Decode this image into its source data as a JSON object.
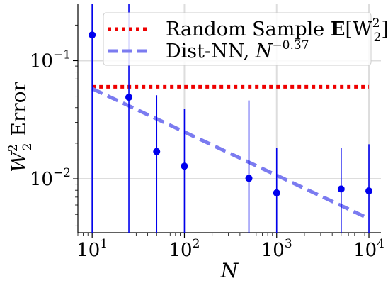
{
  "chart_data": {
    "type": "scatter",
    "xlabel": "N",
    "ylabel": "W_2^2 Error",
    "ylabel_base": "W",
    "ylabel_sub": "2",
    "ylabel_sup": "2",
    "ylabel_rest": " Error",
    "xscale": "log",
    "yscale": "log",
    "xlim": [
      7.0,
      13500
    ],
    "ylim": [
      0.0035,
      0.3
    ],
    "grid": true,
    "legend_position": "top-right",
    "x_ticks": [
      {
        "value": 10,
        "base": "10",
        "exp": "1"
      },
      {
        "value": 100,
        "base": "10",
        "exp": "2"
      },
      {
        "value": 1000,
        "base": "10",
        "exp": "3"
      },
      {
        "value": 10000,
        "base": "10",
        "exp": "4"
      }
    ],
    "y_ticks": [
      {
        "value": 0.1,
        "base": "10",
        "exp": "−1"
      },
      {
        "value": 0.01,
        "base": "10",
        "exp": "−2"
      }
    ],
    "series": [
      {
        "kind": "errorbar",
        "color": "#0000ee",
        "points": [
          {
            "x": 10,
            "y": 0.165,
            "y_low": 0.0035,
            "y_high": 0.3
          },
          {
            "x": 25,
            "y": 0.049,
            "y_low": 0.0035,
            "y_high": 0.3
          },
          {
            "x": 50,
            "y": 0.017,
            "y_low": 0.0035,
            "y_high": 0.051
          },
          {
            "x": 100,
            "y": 0.0128,
            "y_low": 0.0035,
            "y_high": 0.039
          },
          {
            "x": 500,
            "y": 0.0101,
            "y_low": 0.0035,
            "y_high": 0.046
          },
          {
            "x": 1000,
            "y": 0.0076,
            "y_low": 0.0035,
            "y_high": 0.0183
          },
          {
            "x": 5000,
            "y": 0.0082,
            "y_low": 0.0035,
            "y_high": 0.0182
          },
          {
            "x": 10000,
            "y": 0.0079,
            "y_low": 0.0035,
            "y_high": 0.0196
          }
        ]
      },
      {
        "kind": "hline",
        "color": "#ee0000",
        "style": "dotted",
        "y": 0.06,
        "x_range": [
          10,
          10000
        ],
        "name_prefix": "Random Sample ",
        "name_bold": "E",
        "name_mid": "[W",
        "name_sub": "2",
        "name_sup": "2",
        "name_suffix": "]"
      },
      {
        "kind": "line",
        "color": "#7b7bf0",
        "style": "dashed",
        "x": [
          10,
          10000
        ],
        "y": [
          0.058,
          0.0046
        ],
        "name_prefix": "Dist-NN, ",
        "name_var": "N",
        "name_sup": "−0.37"
      }
    ]
  }
}
